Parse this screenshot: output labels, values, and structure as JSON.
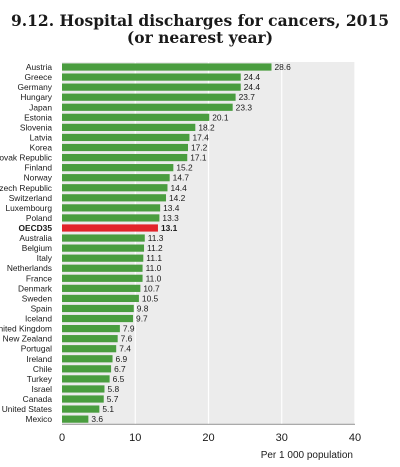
{
  "chart_data": {
    "type": "bar",
    "orientation": "horizontal",
    "title": "9.12. Hospital discharges for cancers, 2015",
    "subtitle": "(or nearest year)",
    "xlabel": "Per 1 000 population",
    "xlim": [
      0,
      40
    ],
    "xticks": [
      0,
      10,
      20,
      30,
      40
    ],
    "grid": true,
    "categories": [
      "Austria",
      "Greece",
      "Germany",
      "Hungary",
      "Japan",
      "Estonia",
      "Slovenia",
      "Latvia",
      "Korea",
      "Slovak Republic",
      "Finland",
      "Norway",
      "Czech Republic",
      "Switzerland",
      "Luxembourg",
      "Poland",
      "OECD35",
      "Australia",
      "Belgium",
      "Italy",
      "Netherlands",
      "France",
      "Denmark",
      "Sweden",
      "Spain",
      "Iceland",
      "United Kingdom",
      "New Zealand",
      "Portugal",
      "Ireland",
      "Chile",
      "Turkey",
      "Israel",
      "Canada",
      "United States",
      "Mexico"
    ],
    "values": [
      28.6,
      24.4,
      24.4,
      23.7,
      23.3,
      20.1,
      18.2,
      17.4,
      17.2,
      17.1,
      15.2,
      14.7,
      14.4,
      14.2,
      13.4,
      13.3,
      13.1,
      11.3,
      11.2,
      11.1,
      11.0,
      11.0,
      10.7,
      10.5,
      9.8,
      9.7,
      7.9,
      7.6,
      7.4,
      6.9,
      6.7,
      6.5,
      5.8,
      5.7,
      5.1,
      3.6
    ],
    "value_labels": [
      "28.6",
      "24.4",
      "24.4",
      "23.7",
      "23.3",
      "20.1",
      "18.2",
      "17.4",
      "17.2",
      "17.1",
      "15.2",
      "14.7",
      "14.4",
      "14.2",
      "13.4",
      "13.3",
      "13.1",
      "11.3",
      "11.2",
      "11.1",
      "11.0",
      "11.0",
      "10.7",
      "10.5",
      "9.8",
      "9.7",
      "7.9",
      "7.6",
      "7.4",
      "6.9",
      "6.7",
      "6.5",
      "5.8",
      "5.7",
      "5.1",
      "3.6"
    ],
    "highlight": "OECD35",
    "colors": {
      "bar": "#4a9d3f",
      "highlight": "#e2232a",
      "band": "#ececec",
      "grid": "#ffffff"
    }
  }
}
